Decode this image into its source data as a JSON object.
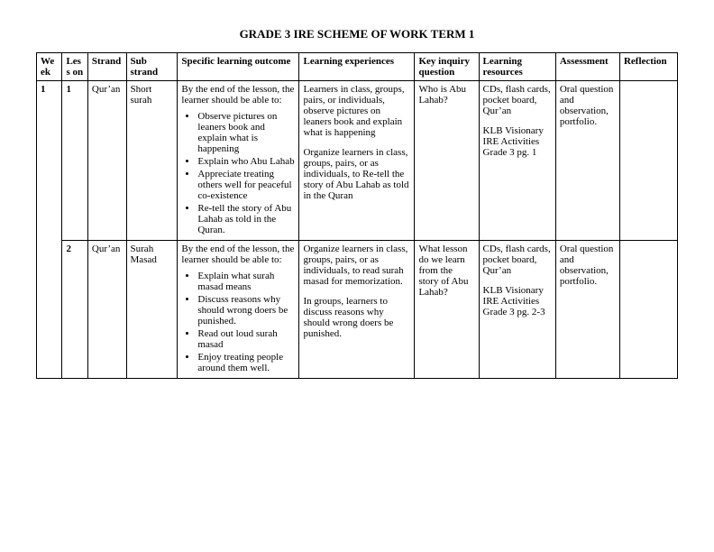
{
  "title": "GRADE 3 IRE SCHEME OF WORK TERM 1",
  "columns": {
    "week": "We ek",
    "lesson": "Less on",
    "strand": "Strand",
    "substrand": "Sub strand",
    "outcome": "Specific learning outcome",
    "experiences": "Learning experiences",
    "inquiry": "Key inquiry question",
    "resources": "Learning resources",
    "assessment": "Assessment",
    "reflection": "Reflection"
  },
  "rows": [
    {
      "week": "1",
      "lesson": "1",
      "strand": "Qur’an",
      "substrand": "Short surah",
      "outcome_intro": "By the end of the lesson, the learner should be able to:",
      "outcome_bullets": [
        "Observe pictures on leaners book and explain what is happening",
        "Explain who Abu Lahab",
        "Appreciate treating others well for peaceful co-existence",
        "Re-tell the story of Abu Lahab as told in the Quran."
      ],
      "experiences_p1": "Learners in class, groups, pairs, or individuals, observe pictures on leaners book and explain what is happening",
      "experiences_p2": "Organize learners in class, groups, pairs, or as individuals, to Re-tell the story of Abu Lahab as told in the Quran",
      "inquiry": "Who is Abu Lahab?",
      "resources_p1": "CDs, flash cards, pocket board, Qur’an",
      "resources_p2": "KLB Visionary IRE Activities Grade 3 pg. 1",
      "assessment": "Oral question and observation, portfolio.",
      "reflection": ""
    },
    {
      "week": "",
      "lesson": "2",
      "strand": "Qur’an",
      "substrand": "Surah Masad",
      "outcome_intro": "By the end of the lesson, the learner should be able to:",
      "outcome_bullets": [
        "Explain what surah masad means",
        "Discuss reasons why should wrong doers be punished.",
        "Read out loud surah masad",
        "Enjoy treating people around them well."
      ],
      "experiences_p1": "Organize learners in class, groups, pairs, or as individuals, to read surah masad for memorization.",
      "experiences_p2": "In groups, learners to discuss reasons why should wrong doers be punished.",
      "inquiry": "What lesson do we learn from the story of Abu Lahab?",
      "resources_p1": "CDs, flash cards, pocket board, Qur’an",
      "resources_p2": "KLB Visionary IRE Activities Grade 3 pg. 2-3",
      "assessment": "Oral question and observation, portfolio.",
      "reflection": ""
    }
  ]
}
